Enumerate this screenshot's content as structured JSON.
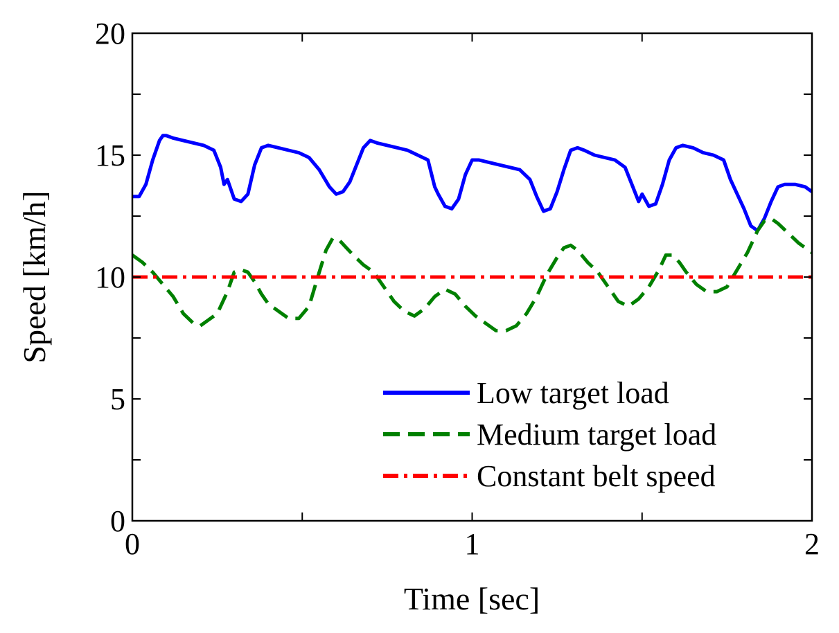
{
  "chart_data": {
    "type": "line",
    "title": "",
    "xlabel": "Time [sec]",
    "ylabel": "Speed [km/h]",
    "xlim": [
      0,
      2
    ],
    "ylim": [
      0,
      20
    ],
    "xticks": [
      0,
      0.5,
      1,
      1.5,
      2
    ],
    "xtick_labels": [
      "0",
      "",
      "1",
      "",
      "2"
    ],
    "yticks": [
      0,
      2.5,
      5,
      7.5,
      10,
      12.5,
      15,
      17.5,
      20
    ],
    "ytick_labels": [
      "0",
      "",
      "5",
      "",
      "10",
      "",
      "15",
      "",
      "20"
    ],
    "grid": false,
    "legend_position": "bottom-right",
    "series": [
      {
        "name": "Low target load",
        "color": "#0000ff",
        "style": "solid",
        "x": [
          0,
          0.02,
          0.04,
          0.06,
          0.08,
          0.09,
          0.1,
          0.12,
          0.15,
          0.18,
          0.21,
          0.24,
          0.26,
          0.27,
          0.28,
          0.3,
          0.32,
          0.34,
          0.36,
          0.38,
          0.4,
          0.43,
          0.46,
          0.49,
          0.52,
          0.55,
          0.58,
          0.6,
          0.62,
          0.64,
          0.66,
          0.68,
          0.7,
          0.72,
          0.75,
          0.78,
          0.81,
          0.84,
          0.87,
          0.89,
          0.9,
          0.92,
          0.94,
          0.96,
          0.98,
          1.0,
          1.02,
          1.05,
          1.08,
          1.11,
          1.14,
          1.17,
          1.19,
          1.21,
          1.23,
          1.25,
          1.27,
          1.29,
          1.31,
          1.33,
          1.36,
          1.39,
          1.42,
          1.45,
          1.47,
          1.49,
          1.5,
          1.52,
          1.54,
          1.56,
          1.58,
          1.6,
          1.62,
          1.65,
          1.68,
          1.71,
          1.74,
          1.76,
          1.78,
          1.8,
          1.82,
          1.84,
          1.86,
          1.88,
          1.9,
          1.92,
          1.95,
          1.98,
          2.0
        ],
        "y": [
          13.3,
          13.3,
          13.8,
          14.8,
          15.6,
          15.8,
          15.8,
          15.7,
          15.6,
          15.5,
          15.4,
          15.2,
          14.5,
          13.8,
          14.0,
          13.2,
          13.1,
          13.4,
          14.6,
          15.3,
          15.4,
          15.3,
          15.2,
          15.1,
          14.9,
          14.4,
          13.7,
          13.4,
          13.5,
          13.9,
          14.6,
          15.3,
          15.6,
          15.5,
          15.4,
          15.3,
          15.2,
          15.0,
          14.8,
          13.7,
          13.4,
          12.9,
          12.8,
          13.2,
          14.2,
          14.8,
          14.8,
          14.7,
          14.6,
          14.5,
          14.4,
          14.0,
          13.3,
          12.7,
          12.8,
          13.5,
          14.4,
          15.2,
          15.3,
          15.2,
          15.0,
          14.9,
          14.8,
          14.5,
          13.8,
          13.1,
          13.4,
          12.9,
          13.0,
          13.8,
          14.8,
          15.3,
          15.4,
          15.3,
          15.1,
          15.0,
          14.8,
          14.0,
          13.4,
          12.8,
          12.1,
          11.9,
          12.4,
          13.1,
          13.7,
          13.8,
          13.8,
          13.7,
          13.5
        ]
      },
      {
        "name": "Medium target load",
        "color": "#008000",
        "style": "dashed",
        "x": [
          0,
          0.03,
          0.06,
          0.09,
          0.12,
          0.15,
          0.18,
          0.2,
          0.22,
          0.25,
          0.28,
          0.3,
          0.32,
          0.34,
          0.36,
          0.38,
          0.4,
          0.43,
          0.46,
          0.49,
          0.52,
          0.55,
          0.57,
          0.59,
          0.61,
          0.63,
          0.65,
          0.68,
          0.71,
          0.74,
          0.77,
          0.8,
          0.83,
          0.86,
          0.89,
          0.92,
          0.95,
          0.98,
          1.01,
          1.04,
          1.07,
          1.1,
          1.13,
          1.16,
          1.19,
          1.22,
          1.25,
          1.27,
          1.29,
          1.31,
          1.34,
          1.37,
          1.4,
          1.43,
          1.46,
          1.49,
          1.52,
          1.55,
          1.57,
          1.59,
          1.61,
          1.63,
          1.66,
          1.69,
          1.72,
          1.75,
          1.78,
          1.81,
          1.84,
          1.86,
          1.88,
          1.9,
          1.93,
          1.96,
          1.99,
          2.0
        ],
        "y": [
          10.9,
          10.6,
          10.2,
          9.7,
          9.2,
          8.5,
          8.1,
          8.0,
          8.2,
          8.5,
          9.4,
          10.2,
          10.3,
          10.2,
          9.8,
          9.3,
          8.9,
          8.6,
          8.3,
          8.3,
          8.8,
          10.2,
          11.1,
          11.6,
          11.5,
          11.2,
          10.9,
          10.5,
          10.2,
          9.6,
          9.0,
          8.6,
          8.4,
          8.7,
          9.2,
          9.5,
          9.3,
          8.8,
          8.4,
          8.1,
          7.8,
          7.8,
          8.0,
          8.5,
          9.2,
          10.1,
          10.8,
          11.2,
          11.3,
          11.1,
          10.6,
          10.2,
          9.6,
          9.0,
          8.8,
          9.1,
          9.6,
          10.3,
          10.9,
          10.9,
          10.6,
          10.2,
          9.7,
          9.4,
          9.4,
          9.6,
          10.3,
          11.0,
          11.9,
          12.3,
          12.4,
          12.2,
          11.8,
          11.4,
          11.1,
          11.0
        ]
      },
      {
        "name": "Constant belt speed",
        "color": "#ff0000",
        "style": "dashdot",
        "x": [
          0,
          2
        ],
        "y": [
          10,
          10
        ]
      }
    ]
  }
}
